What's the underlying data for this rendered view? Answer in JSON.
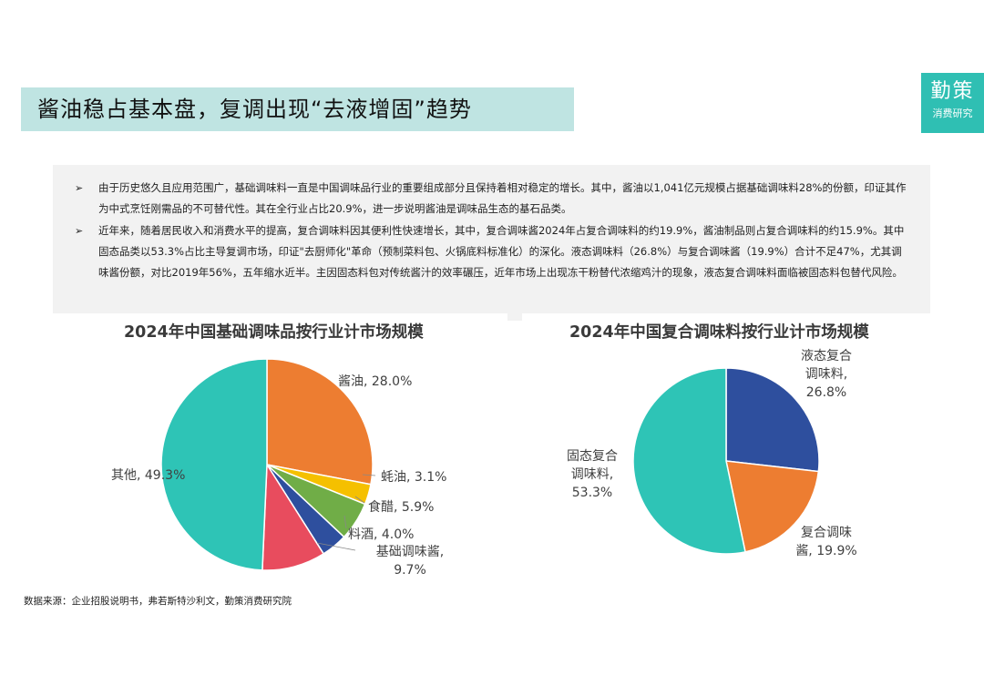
{
  "header": {
    "title": "酱油稳占基本盘，复调出现“去液增固”趋势",
    "logo_main": "勤策",
    "logo_sub": "消费研究"
  },
  "summary": {
    "bullet_marker": "➢",
    "paragraph1": "由于历史悠久且应用范围广，基础调味料一直是中国调味品行业的重要组成部分且保持着相对稳定的增长。其中，酱油以1,041亿元规模占据基础调味料28%的份额，印证其作为中式烹饪刚需品的不可替代性。其在全行业占比20.9%，进一步说明酱油是调味品生态的基石品类。",
    "paragraph2": "近年来，随着居民收入和消费水平的提高，复合调味料因其便利性快速增长，其中，复合调味酱2024年占复合调味料的约19.9%，酱油制品则占复合调味料的约15.9%。其中固态品类以53.3%占比主导复调市场，印证\"去厨师化\"革命（预制菜料包、火锅底料标准化）的深化。液态调味料（26.8%）与复合调味酱（19.9%）合计不足47%，尤其调味酱份额，对比2019年56%，五年缩水近半。主因固态料包对传统酱汁的效率碾压，近年市场上出现冻干粉替代浓缩鸡汁的现象，液态复合调味料面临被固态料包替代风险。"
  },
  "chart_data": [
    {
      "type": "pie",
      "title": "2024年中国基础调味品按行业计市场规模",
      "slices": [
        {
          "label": "酱油, 28.0%",
          "value": 28.0,
          "color": "#ed7d31"
        },
        {
          "label": "蚝油, 3.1%",
          "value": 3.1,
          "color": "#f5c000"
        },
        {
          "label": "食醋, 5.9%",
          "value": 5.9,
          "color": "#70ad47"
        },
        {
          "label": "料酒, 4.0%",
          "value": 4.0,
          "color": "#2e4f9e"
        },
        {
          "label": "基础调味酱,\n9.7%",
          "value": 9.7,
          "color": "#e84c5e"
        },
        {
          "label": "其他, 49.3%",
          "value": 49.3,
          "color": "#2ec4b6"
        }
      ]
    },
    {
      "type": "pie",
      "title": "2024年中国复合调味料按行业计市场规模",
      "slices": [
        {
          "label": "液态复合\n调味料,\n26.8%",
          "value": 26.8,
          "color": "#2e4f9e"
        },
        {
          "label": "复合调味\n酱, 19.9%",
          "value": 19.9,
          "color": "#ed7d31"
        },
        {
          "label": "固态复合\n调味料,\n53.3%",
          "value": 53.3,
          "color": "#2ec4b6"
        }
      ]
    }
  ],
  "footer": {
    "source": "数据来源：企业招股说明书，弗若斯特沙利文，勤策消费研究院"
  }
}
